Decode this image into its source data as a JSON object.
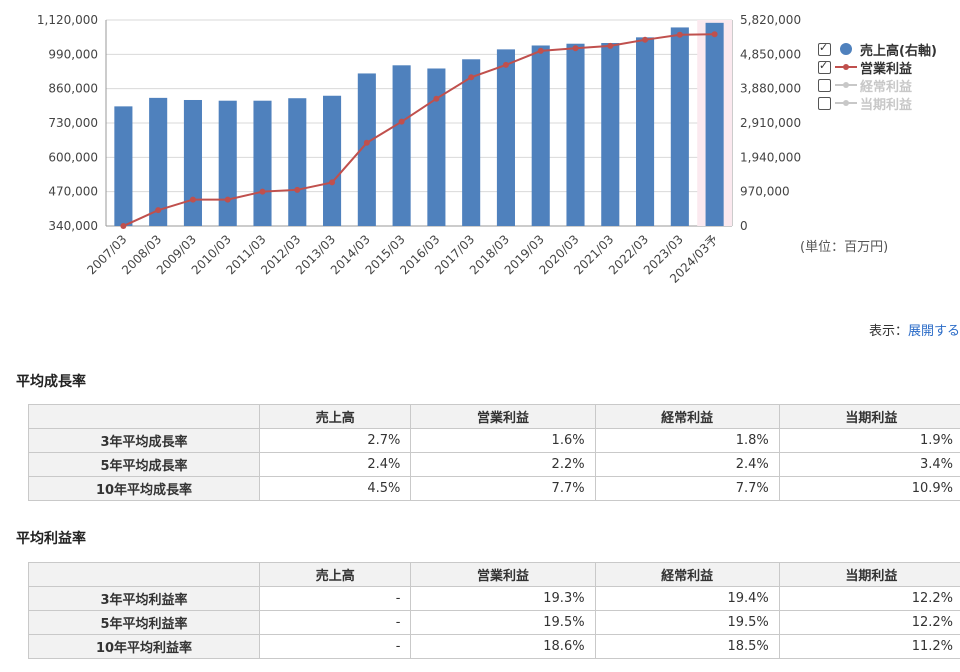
{
  "chart_data": {
    "type": "bar+line",
    "categories": [
      "2007/03",
      "2008/03",
      "2009/03",
      "2010/03",
      "2011/03",
      "2012/03",
      "2013/03",
      "2014/03",
      "2015/03",
      "2016/03",
      "2017/03",
      "2018/03",
      "2019/03",
      "2020/03",
      "2021/03",
      "2022/03",
      "2023/03",
      "2024/03予"
    ],
    "series": [
      {
        "name": "売上高(右軸)",
        "type": "bar",
        "axis": "right",
        "color": "#4f81bd",
        "values": [
          3380000,
          3620000,
          3560000,
          3540000,
          3540000,
          3610000,
          3680000,
          4310000,
          4540000,
          4450000,
          4710000,
          4990000,
          5100000,
          5150000,
          5170000,
          5330000,
          5610000,
          5740000
        ]
      },
      {
        "name": "営業利益",
        "type": "line",
        "axis": "left",
        "color": "#c0504d",
        "values": [
          340000,
          400000,
          440000,
          440000,
          470000,
          477000,
          505000,
          655000,
          735000,
          822000,
          903000,
          950000,
          1003000,
          1013000,
          1022000,
          1045000,
          1064000,
          1066000
        ]
      }
    ],
    "left_axis": {
      "min": 340000,
      "max": 1120000,
      "ticks": [
        "340,000",
        "470,000",
        "600,000",
        "730,000",
        "860,000",
        "990,000",
        "1,120,000"
      ]
    },
    "right_axis": {
      "min": 0,
      "max": 5820000,
      "ticks": [
        "0",
        "970,000",
        "1,940,000",
        "2,910,000",
        "3,880,000",
        "4,850,000",
        "5,820,000"
      ]
    },
    "legend": {
      "placement": "right",
      "items": [
        {
          "label": "売上高(右軸)",
          "checked": true,
          "symbol": "dot",
          "color": "#4f81bd"
        },
        {
          "label": "営業利益",
          "checked": true,
          "symbol": "line",
          "color": "#c0504d"
        },
        {
          "label": "経常利益",
          "checked": false,
          "symbol": "line",
          "color": "#c8c8c8"
        },
        {
          "label": "当期利益",
          "checked": false,
          "symbol": "line",
          "color": "#c8c8c8"
        }
      ]
    },
    "grid": true
  },
  "unit_label": "(単位：百万円)",
  "display": {
    "label": "表示：",
    "link": "展開する"
  },
  "growth": {
    "title": "平均成長率",
    "headers": [
      "売上高",
      "営業利益",
      "経常利益",
      "当期利益"
    ],
    "rows": [
      {
        "label": "3年平均成長率",
        "values": [
          "2.7%",
          "1.6%",
          "1.8%",
          "1.9%"
        ]
      },
      {
        "label": "5年平均成長率",
        "values": [
          "2.4%",
          "2.2%",
          "2.4%",
          "3.4%"
        ]
      },
      {
        "label": "10年平均成長率",
        "values": [
          "4.5%",
          "7.7%",
          "7.7%",
          "10.9%"
        ]
      }
    ]
  },
  "margin": {
    "title": "平均利益率",
    "headers": [
      "売上高",
      "営業利益",
      "経常利益",
      "当期利益"
    ],
    "rows": [
      {
        "label": "3年平均利益率",
        "values": [
          "-",
          "19.3%",
          "19.4%",
          "12.2%"
        ]
      },
      {
        "label": "5年平均利益率",
        "values": [
          "-",
          "19.5%",
          "19.5%",
          "12.2%"
        ]
      },
      {
        "label": "10年平均利益率",
        "values": [
          "-",
          "18.6%",
          "18.5%",
          "11.2%"
        ]
      }
    ]
  }
}
